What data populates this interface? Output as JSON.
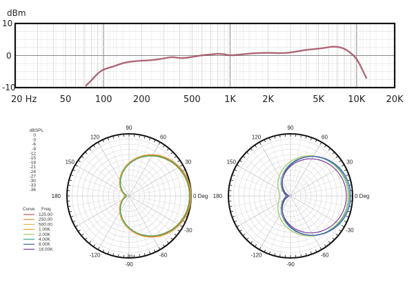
{
  "chart_data": [
    {
      "type": "line",
      "ylabel": "dBm",
      "xscale": "log",
      "xlim": [
        20,
        20000
      ],
      "ylim": [
        -10,
        10
      ],
      "yticks": [
        "10",
        "0",
        "-10"
      ],
      "xtick_values": [
        20,
        50,
        100,
        200,
        500,
        1000,
        2000,
        5000,
        10000,
        20000
      ],
      "xtick_labels": [
        "20 Hz",
        "50",
        "100",
        "200",
        "500",
        "1K",
        "2K",
        "5K",
        "10K",
        "20K"
      ],
      "grid": true,
      "series": [
        {
          "color": "#b5566a",
          "x": [
            72,
            80,
            90,
            100,
            120,
            150,
            200,
            250,
            300,
            350,
            400,
            500,
            600,
            700,
            800,
            900,
            1000,
            1200,
            1500,
            2000,
            2500,
            3000,
            4000,
            5000,
            6000,
            6500,
            7500,
            8500,
            10000,
            11000,
            12000
          ],
          "y": [
            -9.5,
            -7.8,
            -5.5,
            -4.3,
            -3.4,
            -2.0,
            -1.6,
            -1.4,
            -0.9,
            -0.4,
            -0.9,
            -0.5,
            0.1,
            0.3,
            0.6,
            0.4,
            0.0,
            0.3,
            0.7,
            0.9,
            0.7,
            0.9,
            1.8,
            2.1,
            2.6,
            2.8,
            2.6,
            1.6,
            -0.8,
            -4.1,
            -7.2
          ]
        }
      ]
    },
    {
      "type": "polar",
      "radial_label": "dBSPL",
      "radial_ticks": [
        "0",
        "-3",
        "-6",
        "-9",
        "-12",
        "-15",
        "-18",
        "-21",
        "-24",
        "-27",
        "-30",
        "-33",
        "-36"
      ],
      "angle_labels": [
        "90",
        "60",
        "30",
        "0 Deg",
        "-30",
        "-60",
        "-90",
        "-120",
        "180",
        "150",
        "120"
      ],
      "bottom_label": "3m",
      "legend": {
        "header": [
          "Curve",
          "Freq"
        ],
        "entries": [
          {
            "freq": "125.00",
            "color": "#c0504d"
          },
          {
            "freq": "250.00",
            "color": "#d98c3a"
          },
          {
            "freq": "500.00",
            "color": "#d9b35a"
          },
          {
            "freq": "1.00K",
            "color": "#e8a040"
          },
          {
            "freq": "2.00K",
            "color": "#a8c060"
          },
          {
            "freq": "4.00K",
            "color": "#3a9a8a"
          },
          {
            "freq": "8.00K",
            "color": "#3a5aaa"
          },
          {
            "freq": "16.00K",
            "color": "#7a3a9a"
          }
        ]
      },
      "series": [
        {
          "color": "#c0504d",
          "shape": [
            1.0,
            0.5,
            0.055
          ]
        },
        {
          "color": "#d98c3a",
          "shape": [
            0.99,
            0.5,
            0.05
          ]
        },
        {
          "color": "#d9b35a",
          "shape": [
            0.97,
            0.5,
            0.06
          ]
        },
        {
          "color": "#e8a040",
          "shape": [
            1.0,
            0.5,
            0.07
          ]
        },
        {
          "color": "#3aa060",
          "shape": [
            0.98,
            0.5,
            0.04
          ]
        }
      ]
    },
    {
      "type": "polar",
      "angle_labels": [
        "90",
        "60",
        "30",
        "0 Deg",
        "-30",
        "-60",
        "-90",
        "-120",
        "180",
        "150",
        "120"
      ],
      "series": [
        {
          "color": "#a8c060",
          "shape": [
            0.93,
            0.46,
            0.25
          ]
        },
        {
          "color": "#3a9a8a",
          "shape": [
            0.95,
            0.42,
            0.23
          ]
        },
        {
          "color": "#3a5aaa",
          "shape": [
            0.97,
            0.4,
            0.22
          ]
        },
        {
          "color": "#7a3a9a",
          "shape": [
            0.9,
            0.38,
            0.27
          ]
        }
      ]
    }
  ]
}
